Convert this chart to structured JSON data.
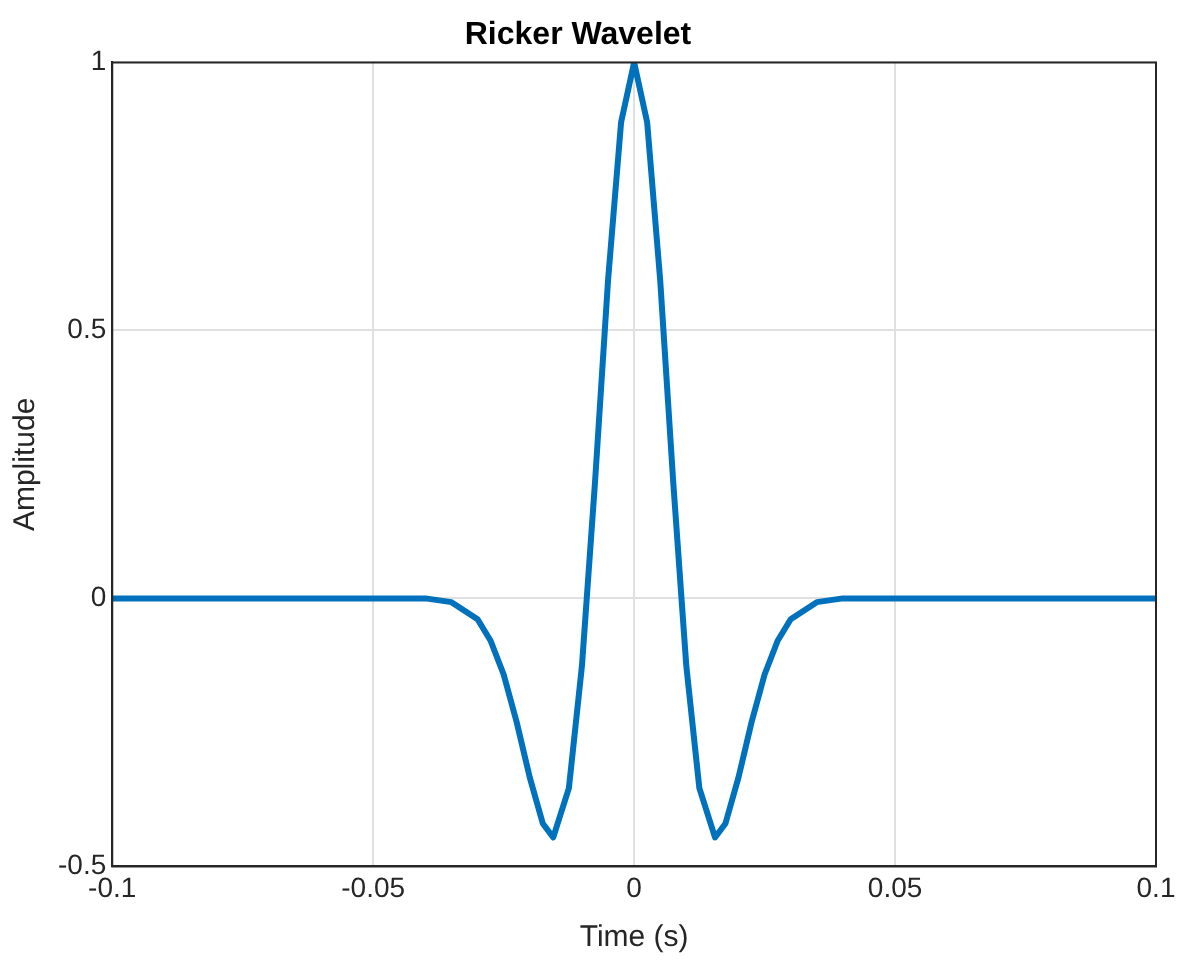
{
  "chart_data": {
    "type": "line",
    "title": "Ricker Wavelet",
    "xlabel": "Time (s)",
    "ylabel": "Amplitude",
    "series": [
      {
        "color": "#0072bd",
        "x": [
          -0.1,
          -0.06,
          -0.04,
          -0.035,
          -0.03,
          -0.0275,
          -0.025,
          -0.0225,
          -0.02,
          -0.0175,
          -0.0155,
          -0.0125,
          -0.01,
          -0.0075,
          -0.005,
          -0.0025,
          0,
          0.0025,
          0.005,
          0.0075,
          0.01,
          0.0125,
          0.0155,
          0.0175,
          0.02,
          0.0225,
          0.025,
          0.0275,
          0.03,
          0.035,
          0.04,
          0.06,
          0.1
        ],
        "values": [
          0,
          0,
          0,
          -0.007,
          -0.039,
          -0.079,
          -0.142,
          -0.231,
          -0.334,
          -0.42,
          -0.446,
          -0.354,
          -0.126,
          0.216,
          0.593,
          0.888,
          1,
          0.888,
          0.593,
          0.216,
          -0.126,
          -0.354,
          -0.446,
          -0.42,
          -0.334,
          -0.231,
          -0.142,
          -0.079,
          -0.039,
          -0.007,
          0,
          0,
          0
        ]
      }
    ],
    "xlim": [
      -0.1,
      0.1
    ],
    "xticks": [
      -0.1,
      -0.05,
      0,
      0.05,
      0.1
    ],
    "ylim": [
      -0.5,
      1
    ],
    "yticks": [
      -0.5,
      0,
      0.5,
      1
    ],
    "grid": true,
    "legend": false,
    "marker": "none",
    "line_style": "solid"
  }
}
